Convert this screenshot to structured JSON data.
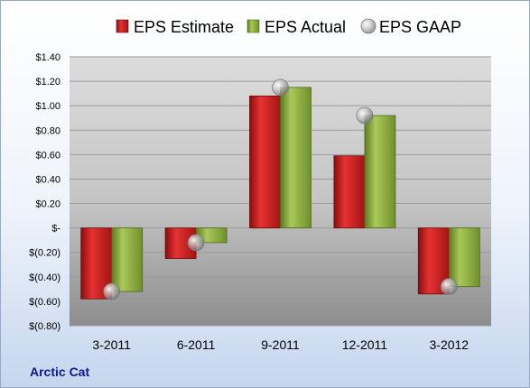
{
  "chart_data": {
    "type": "bar",
    "categories": [
      "3-2011",
      "6-2011",
      "9-2011",
      "12-2011",
      "3-2012"
    ],
    "series": [
      {
        "name": "EPS Estimate",
        "values": [
          -0.58,
          -0.25,
          1.08,
          0.59,
          -0.54
        ],
        "color": "#cc1f1f",
        "kind": "bar"
      },
      {
        "name": "EPS Actual",
        "values": [
          -0.52,
          -0.12,
          1.15,
          0.92,
          -0.48
        ],
        "color": "#8aad3c",
        "kind": "bar"
      },
      {
        "name": "EPS GAAP",
        "values": [
          -0.52,
          -0.12,
          1.15,
          0.92,
          -0.48
        ],
        "color": "#a9a9a9",
        "kind": "marker"
      }
    ],
    "y_ticks": [
      "$1.40",
      "$1.20",
      "$1.00",
      "$0.80",
      "$0.60",
      "$0.40",
      "$0.20",
      "$-",
      "$(0.20)",
      "$(0.40)",
      "$(0.60)",
      "$(0.80)"
    ],
    "ylim": [
      -0.8,
      1.4
    ],
    "grid": true,
    "legend_position": "top",
    "footer": "Arctic Cat"
  }
}
